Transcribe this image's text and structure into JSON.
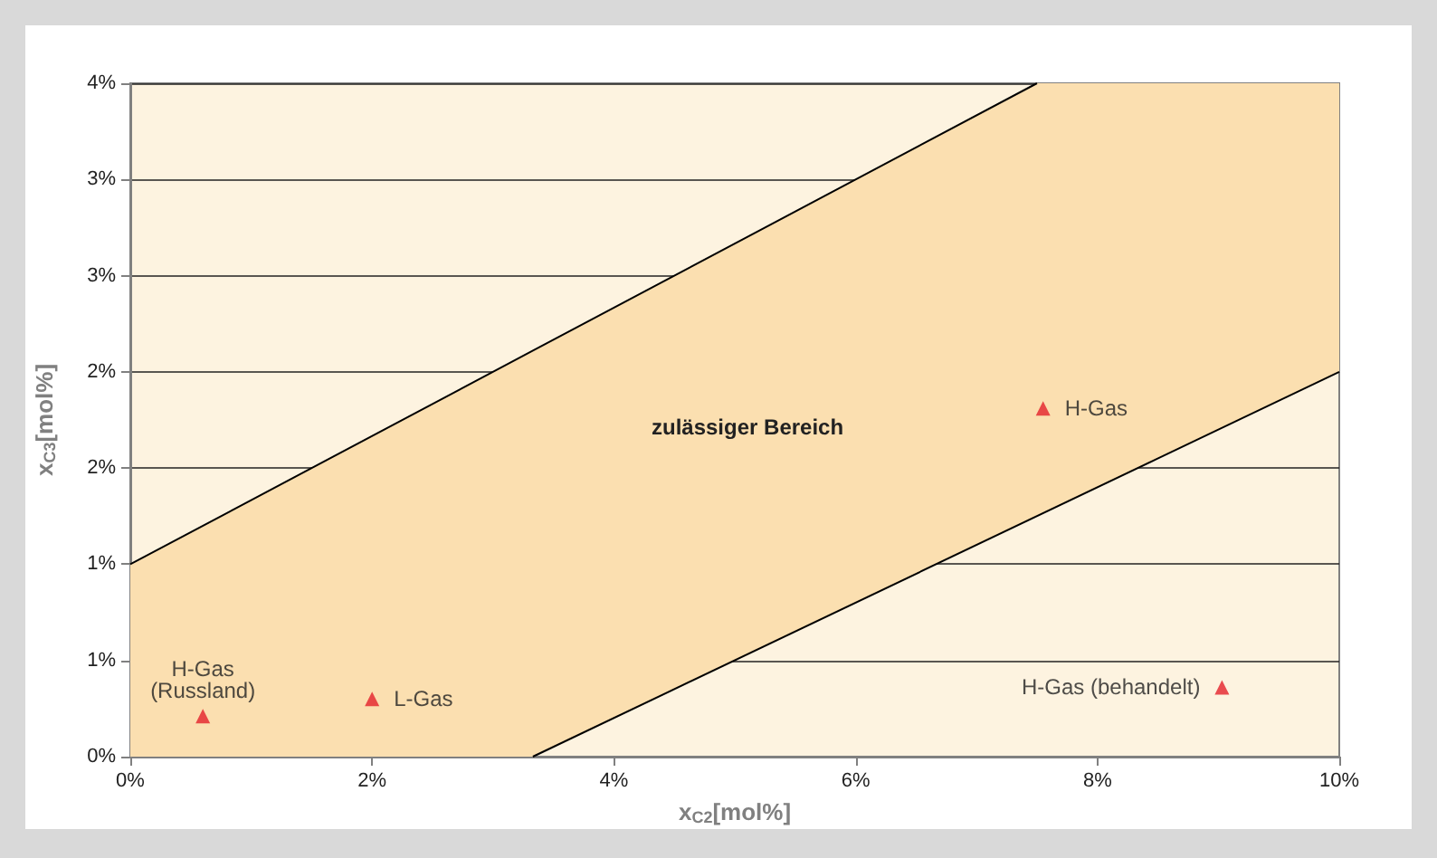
{
  "chart_data": {
    "type": "scatter",
    "xlabel": "x$_{C2}$[mol%]",
    "ylabel": "x$_{C3}$[mol%]",
    "xlim": [
      0,
      10
    ],
    "ylim": [
      0,
      3.5
    ],
    "xticks": [
      {
        "value": 0,
        "label": "0%"
      },
      {
        "value": 2,
        "label": "2%"
      },
      {
        "value": 4,
        "label": "4%"
      },
      {
        "value": 6,
        "label": "6%"
      },
      {
        "value": 8,
        "label": "8%"
      },
      {
        "value": 10,
        "label": "10%"
      }
    ],
    "yticks": [
      {
        "value": 0,
        "label": "0%"
      },
      {
        "value": 0.5,
        "label": "1%"
      },
      {
        "value": 1,
        "label": "1%"
      },
      {
        "value": 1.5,
        "label": "2%"
      },
      {
        "value": 2,
        "label": "2%"
      },
      {
        "value": 2.5,
        "label": "3%"
      },
      {
        "value": 3,
        "label": "3%"
      },
      {
        "value": 3.5,
        "label": "4%"
      }
    ],
    "grid": "y",
    "marker": "triangle",
    "legend": false,
    "annotations": [
      "zulässiger Bereich"
    ],
    "series": [
      {
        "type": "line",
        "color": "#000000",
        "marker": "none",
        "x": [
          0,
          3.33,
          7.5,
          10
        ],
        "values": [
          1,
          2.11,
          3.5,
          null
        ],
        "lower": [
          0,
          0,
          1.25,
          2
        ],
        "upper": [
          1,
          2.11,
          3.5,
          3.5
        ]
      },
      {
        "type": "line",
        "color": "#000000",
        "marker": "none",
        "x": [
          3.33,
          10
        ],
        "values": [
          0,
          2
        ]
      },
      {
        "name": "H-Gas (Russland)",
        "color": "#e3202b",
        "x": [
          0.6
        ],
        "values": [
          0.21
        ]
      },
      {
        "name": "L-Gas",
        "color": "#e3202b",
        "x": [
          2.0
        ],
        "values": [
          0.3
        ]
      },
      {
        "name": "H-Gas",
        "color": "#e3202b",
        "x": [
          7.55
        ],
        "values": [
          1.81
        ]
      },
      {
        "name": "H-Gas (behandelt)",
        "color": "#e3202b",
        "x": [
          9.03
        ],
        "values": [
          0.36
        ]
      }
    ]
  }
}
